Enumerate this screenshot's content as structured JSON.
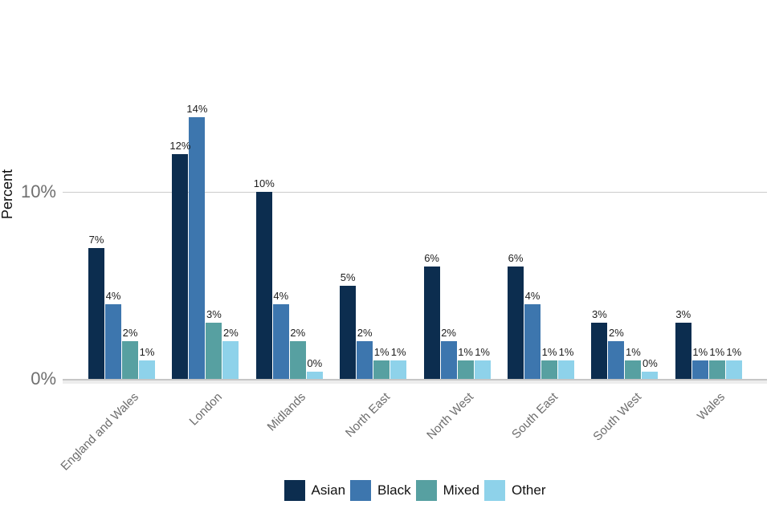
{
  "chart_data": {
    "type": "bar",
    "title": "",
    "xlabel": "",
    "ylabel": "Percent",
    "unit": "%",
    "value_label_suffix": "%",
    "grid": "horizontal",
    "legend_position": "bottom",
    "ylim": [
      0,
      15
    ],
    "yticks": [
      {
        "value": 0,
        "label": "0%"
      },
      {
        "value": 10,
        "label": "10%"
      }
    ],
    "categories": [
      "England and Wales",
      "London",
      "Midlands",
      "North East",
      "North West",
      "South East",
      "South West",
      "Wales"
    ],
    "series": [
      {
        "name": "Asian",
        "color": "#0c2d4f",
        "values": [
          7,
          12,
          10,
          5,
          6,
          6,
          3,
          3
        ]
      },
      {
        "name": "Black",
        "color": "#3d76ae",
        "values": [
          4,
          14,
          4,
          2,
          2,
          4,
          2,
          1
        ]
      },
      {
        "name": "Mixed",
        "color": "#57a0a1",
        "values": [
          2,
          3,
          2,
          1,
          1,
          1,
          1,
          1
        ]
      },
      {
        "name": "Other",
        "color": "#8ed2ea",
        "values": [
          1,
          2,
          0,
          1,
          1,
          1,
          0,
          1
        ]
      }
    ]
  }
}
